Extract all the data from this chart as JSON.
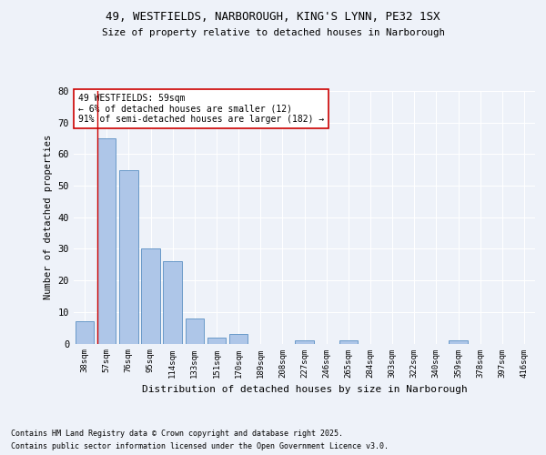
{
  "title1": "49, WESTFIELDS, NARBOROUGH, KING'S LYNN, PE32 1SX",
  "title2": "Size of property relative to detached houses in Narborough",
  "xlabel": "Distribution of detached houses by size in Narborough",
  "ylabel": "Number of detached properties",
  "categories": [
    "38sqm",
    "57sqm",
    "76sqm",
    "95sqm",
    "114sqm",
    "133sqm",
    "151sqm",
    "170sqm",
    "189sqm",
    "208sqm",
    "227sqm",
    "246sqm",
    "265sqm",
    "284sqm",
    "303sqm",
    "322sqm",
    "340sqm",
    "359sqm",
    "378sqm",
    "397sqm",
    "416sqm"
  ],
  "values": [
    7,
    65,
    55,
    30,
    26,
    8,
    2,
    3,
    0,
    0,
    1,
    0,
    1,
    0,
    0,
    0,
    0,
    1,
    0,
    0,
    0
  ],
  "bar_color": "#aec6e8",
  "bar_edge_color": "#5a8fc2",
  "vline_color": "#cc0000",
  "annotation_title": "49 WESTFIELDS: 59sqm",
  "annotation_line1": "← 6% of detached houses are smaller (12)",
  "annotation_line2": "91% of semi-detached houses are larger (182) →",
  "annotation_box_color": "#ffffff",
  "annotation_box_edge": "#cc0000",
  "ylim": [
    0,
    80
  ],
  "yticks": [
    0,
    10,
    20,
    30,
    40,
    50,
    60,
    70,
    80
  ],
  "bg_color": "#eef2f9",
  "grid_color": "#ffffff",
  "footer1": "Contains HM Land Registry data © Crown copyright and database right 2025.",
  "footer2": "Contains public sector information licensed under the Open Government Licence v3.0."
}
